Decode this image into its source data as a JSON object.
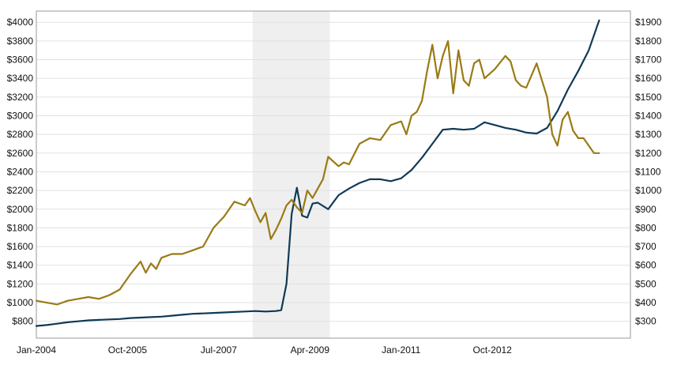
{
  "chart_data": {
    "type": "line",
    "title": "",
    "xlabel": "",
    "ylabel": "",
    "x_ticks": [
      "Jan-2004",
      "Oct-2005",
      "Jul-2007",
      "Apr-2009",
      "Jan-2011",
      "Oct-2012"
    ],
    "y_left_ticks": [
      "$800",
      "$1000",
      "$1200",
      "$1400",
      "$1600",
      "$1800",
      "$2000",
      "$2200",
      "$2400",
      "$2600",
      "$2800",
      "$3000",
      "$3200",
      "$3400",
      "$3600",
      "$3800",
      "$4000"
    ],
    "y_right_ticks": [
      "$300",
      "$400",
      "$500",
      "$600",
      "$700",
      "$800",
      "$900",
      "$1000",
      "$1100",
      "$1200",
      "$1300",
      "$1400",
      "$1500",
      "$1600",
      "$1700",
      "$1800",
      "$1900"
    ],
    "y_left_range": [
      620,
      4120
    ],
    "y_right_range": [
      210,
      1960
    ],
    "x_range": [
      2004.0,
      2014.8
    ],
    "grid": "horizontal",
    "shaded_region": [
      2008.15,
      2009.63
    ],
    "series": [
      {
        "axis": "left",
        "color": "#0f3a57",
        "x": [
          2004.0,
          2004.2,
          2004.4,
          2004.6,
          2004.8,
          2005.0,
          2005.2,
          2005.4,
          2005.6,
          2005.8,
          2006.0,
          2006.2,
          2006.4,
          2006.6,
          2006.8,
          2007.0,
          2007.2,
          2007.4,
          2007.6,
          2007.8,
          2008.0,
          2008.2,
          2008.4,
          2008.6,
          2008.7,
          2008.8,
          2008.9,
          2009.0,
          2009.1,
          2009.2,
          2009.3,
          2009.4,
          2009.6,
          2009.8,
          2010.0,
          2010.2,
          2010.4,
          2010.6,
          2010.8,
          2011.0,
          2011.2,
          2011.4,
          2011.6,
          2011.8,
          2012.0,
          2012.2,
          2012.4,
          2012.6,
          2012.8,
          2013.0,
          2013.2,
          2013.4,
          2013.6,
          2013.8,
          2014.0,
          2014.2,
          2014.4,
          2014.6,
          2014.8
        ],
        "y": [
          750,
          760,
          775,
          790,
          800,
          810,
          815,
          820,
          825,
          835,
          840,
          845,
          850,
          860,
          870,
          880,
          885,
          890,
          895,
          900,
          905,
          910,
          905,
          910,
          920,
          1200,
          1950,
          2230,
          1930,
          1910,
          2060,
          2070,
          2000,
          2150,
          2220,
          2280,
          2320,
          2320,
          2300,
          2330,
          2420,
          2550,
          2700,
          2850,
          2860,
          2850,
          2860,
          2930,
          2900,
          2870,
          2850,
          2820,
          2810,
          2870,
          3050,
          3280,
          3480,
          3700,
          4020
        ]
      },
      {
        "axis": "right",
        "color": "#9a7a14",
        "x": [
          2004.0,
          2004.2,
          2004.4,
          2004.6,
          2004.8,
          2005.0,
          2005.2,
          2005.4,
          2005.6,
          2005.8,
          2006.0,
          2006.1,
          2006.2,
          2006.3,
          2006.4,
          2006.6,
          2006.8,
          2007.0,
          2007.2,
          2007.4,
          2007.6,
          2007.8,
          2008.0,
          2008.1,
          2008.2,
          2008.3,
          2008.4,
          2008.5,
          2008.6,
          2008.7,
          2008.8,
          2008.9,
          2009.0,
          2009.1,
          2009.2,
          2009.3,
          2009.4,
          2009.5,
          2009.6,
          2009.8,
          2009.9,
          2010.0,
          2010.2,
          2010.4,
          2010.6,
          2010.8,
          2011.0,
          2011.1,
          2011.2,
          2011.3,
          2011.4,
          2011.5,
          2011.6,
          2011.7,
          2011.8,
          2011.9,
          2012.0,
          2012.1,
          2012.2,
          2012.3,
          2012.4,
          2012.5,
          2012.6,
          2012.8,
          2013.0,
          2013.1,
          2013.2,
          2013.3,
          2013.4,
          2013.6,
          2013.8,
          2013.9,
          2014.0,
          2014.1,
          2014.2,
          2014.3,
          2014.4,
          2014.5,
          2014.6,
          2014.7,
          2014.8
        ],
        "y": [
          410,
          400,
          390,
          410,
          420,
          430,
          420,
          440,
          470,
          550,
          620,
          560,
          610,
          580,
          640,
          660,
          660,
          680,
          700,
          800,
          860,
          940,
          920,
          960,
          890,
          830,
          880,
          740,
          790,
          850,
          920,
          950,
          910,
          880,
          1000,
          960,
          1010,
          1060,
          1180,
          1130,
          1150,
          1140,
          1250,
          1280,
          1270,
          1350,
          1370,
          1300,
          1400,
          1420,
          1480,
          1640,
          1780,
          1600,
          1720,
          1800,
          1520,
          1750,
          1590,
          1560,
          1680,
          1700,
          1600,
          1650,
          1720,
          1690,
          1590,
          1560,
          1550,
          1680,
          1500,
          1300,
          1240,
          1380,
          1420,
          1320,
          1280,
          1280,
          1240,
          1200,
          1200
        ]
      }
    ]
  }
}
